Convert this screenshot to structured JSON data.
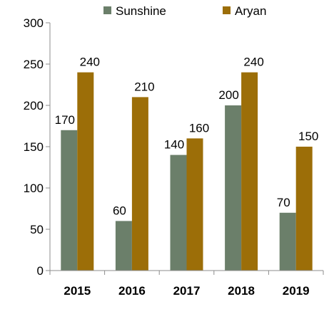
{
  "chart_data": {
    "type": "bar",
    "categories": [
      "2015",
      "2016",
      "2017",
      "2018",
      "2019"
    ],
    "series": [
      {
        "name": "Sunshine",
        "values": [
          170,
          60,
          140,
          200,
          70
        ],
        "color": "#6b7f6a"
      },
      {
        "name": "Aryan",
        "values": [
          240,
          210,
          160,
          240,
          150
        ],
        "color": "#9c6e08"
      }
    ],
    "ylim": [
      0,
      300
    ],
    "yticks": [
      0,
      50,
      100,
      150,
      200,
      250,
      300
    ],
    "title": "",
    "xlabel": "",
    "ylabel": "",
    "grid": false,
    "legend": "top-center",
    "data_labels": true
  }
}
